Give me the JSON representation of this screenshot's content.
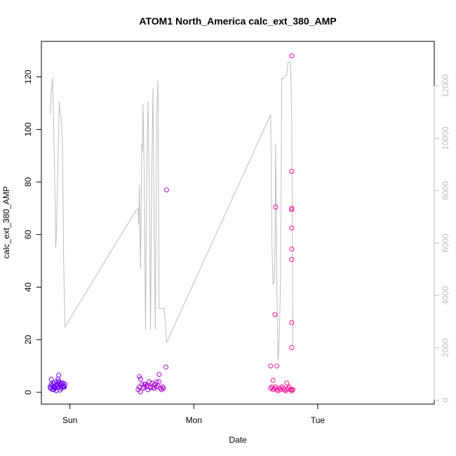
{
  "chart_data": {
    "type": "scatter",
    "title": "ATOM1 North_America calc_ext_380_AMP",
    "xlabel": "Date",
    "ylabel": "calc_ext_380_AMP",
    "x_ticks": [
      "Sun",
      "Mon",
      "Tue"
    ],
    "x_tick_positions_days": [
      1,
      2,
      3
    ],
    "xlim_days": [
      0.77,
      3.94
    ],
    "ylim": [
      -4.5,
      133.5
    ],
    "y_ticks": [
      0,
      20,
      40,
      60,
      80,
      100,
      120
    ],
    "y2lim": [
      -150,
      13700
    ],
    "y2_ticks": [
      0,
      2000,
      4000,
      6000,
      8000,
      10000,
      12000
    ],
    "right_axis_color": "#bebebe",
    "line_color": "#bebebe",
    "point_color_start": "#6a00ff",
    "point_color_end": "#ff1493",
    "series": [
      {
        "kind": "points",
        "axis": "left",
        "x_days": [
          0.84,
          0.845,
          0.85,
          0.855,
          0.86,
          0.865,
          0.87,
          0.875,
          0.88,
          0.885,
          0.89,
          0.895,
          0.9,
          0.905,
          0.91,
          0.915,
          0.92,
          0.925,
          0.93,
          0.935,
          0.94,
          0.945,
          0.95,
          0.955,
          0.96,
          0.85,
          0.87,
          0.89,
          0.91,
          0.93,
          0.95,
          0.88,
          0.9,
          0.92,
          1.55,
          1.56,
          1.57,
          1.58,
          1.59,
          1.6,
          1.61,
          1.62,
          1.63,
          1.64,
          1.65,
          1.66,
          1.67,
          1.68,
          1.69,
          1.7,
          1.71,
          1.72,
          1.73,
          1.74,
          1.75,
          1.755,
          1.56,
          1.57,
          1.6,
          1.62,
          1.65,
          1.68,
          1.7,
          1.72,
          1.775,
          1.78,
          2.62,
          2.63,
          2.64,
          2.65,
          2.66,
          2.67,
          2.68,
          2.69,
          2.7,
          2.71,
          2.72,
          2.73,
          2.74,
          2.75,
          2.76,
          2.77,
          2.78,
          2.79,
          2.8,
          2.62,
          2.64,
          2.655,
          2.66,
          2.67,
          2.75,
          2.79,
          2.79,
          2.79,
          2.79,
          2.79,
          2.79,
          2.79,
          2.79,
          2.79,
          2.79
        ],
        "y": [
          2,
          1.5,
          3,
          2.5,
          1,
          2,
          3.5,
          2,
          1.5,
          2.5,
          4,
          3,
          2,
          5,
          6.5,
          2,
          3,
          2.5,
          1.5,
          3,
          2,
          3.5,
          2.5,
          2,
          3,
          4.9,
          1,
          0.6,
          4.2,
          3.6,
          2.1,
          1.8,
          2.7,
          0.8,
          1,
          2,
          5,
          3,
          1.5,
          2,
          3,
          2.5,
          1,
          4,
          2,
          3.5,
          2,
          1.5,
          3,
          2,
          2.5,
          4,
          1.5,
          1,
          2,
          1.5,
          6,
          0.2,
          3,
          2.2,
          1.7,
          2.8,
          3.9,
          6.8,
          9.6,
          77,
          1.5,
          2,
          1,
          1.5,
          2,
          1,
          0.5,
          1.5,
          1,
          2,
          1.5,
          1,
          0.5,
          1,
          1.5,
          2,
          1,
          0.5,
          1,
          10,
          4.5,
          29.5,
          70.5,
          10,
          3.5,
          128,
          84,
          70,
          69.5,
          62.5,
          54.5,
          50.5,
          26.5,
          17,
          1
        ]
      },
      {
        "kind": "line",
        "axis": "right",
        "x_days": [
          0.84,
          0.85,
          0.86,
          0.87,
          0.88,
          0.885,
          0.89,
          0.9,
          0.91,
          0.915,
          0.92,
          0.93,
          0.94,
          0.95,
          0.96,
          1.54,
          1.55,
          1.555,
          1.56,
          1.57,
          1.58,
          1.585,
          1.59,
          1.6,
          1.61,
          1.62,
          1.63,
          1.64,
          1.65,
          1.66,
          1.67,
          1.68,
          1.69,
          1.7,
          1.71,
          1.72,
          1.73,
          1.74,
          1.75,
          1.76,
          1.77,
          1.78,
          2.62,
          2.63,
          2.64,
          2.65,
          2.655,
          2.66,
          2.67,
          2.68,
          2.69,
          2.7,
          2.71,
          2.72,
          2.73,
          2.74,
          2.75,
          2.76,
          2.77,
          2.78,
          2.79,
          2.8
        ],
        "y2": [
          10900,
          11800,
          12300,
          10200,
          7800,
          5800,
          6200,
          8300,
          10300,
          11400,
          11000,
          10800,
          9800,
          5200,
          2800,
          7300,
          7300,
          6700,
          8200,
          5000,
          9800,
          9500,
          11300,
          8500,
          2700,
          8900,
          11400,
          8000,
          2700,
          8400,
          11900,
          6400,
          2700,
          10700,
          12200,
          3500,
          3500,
          3500,
          3500,
          3500,
          3000,
          2200,
          10900,
          6000,
          4400,
          4600,
          5800,
          9800,
          4400,
          1500,
          2500,
          4600,
          12300,
          12300,
          12300,
          12400,
          12400,
          12900,
          12900,
          12900,
          10800,
          2100
        ]
      }
    ]
  }
}
